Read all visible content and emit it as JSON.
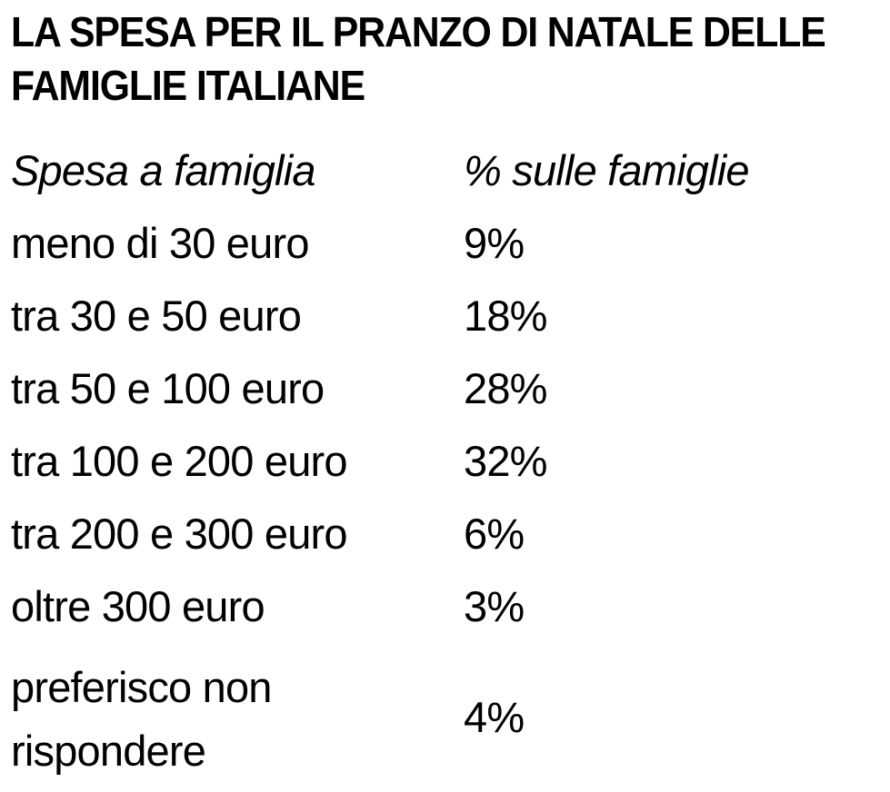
{
  "chart_data": {
    "type": "table",
    "title": "LA SPESA PER IL PRANZO DI NATALE DELLE FAMIGLIE ITALIANE",
    "columns": [
      "Spesa a famiglia",
      "% sulle famiglie"
    ],
    "rows": [
      {
        "label": "meno di 30 euro",
        "value": "9%"
      },
      {
        "label": "tra 30 e 50 euro",
        "value": "18%"
      },
      {
        "label": "tra 50 e 100 euro",
        "value": "28%"
      },
      {
        "label": "tra 100 e 200 euro",
        "value": "32%"
      },
      {
        "label": "tra 200 e 300 euro",
        "value": "6%"
      },
      {
        "label": "oltre 300 euro",
        "value": "3%"
      },
      {
        "label": "preferisco non rispondere",
        "value": "4%"
      }
    ]
  }
}
